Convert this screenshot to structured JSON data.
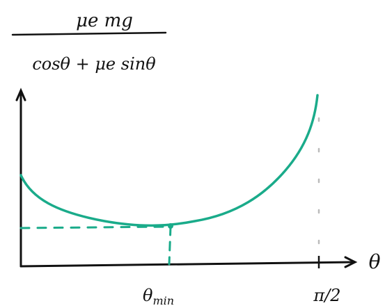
{
  "formula": {
    "numerator": "μe mg",
    "denominator": "cosθ + μe sinθ"
  },
  "axes": {
    "x_label": "θ"
  },
  "markers": {
    "theta_min": {
      "symbol": "θ",
      "subscript": "min"
    },
    "right_limit": "π/2"
  }
}
